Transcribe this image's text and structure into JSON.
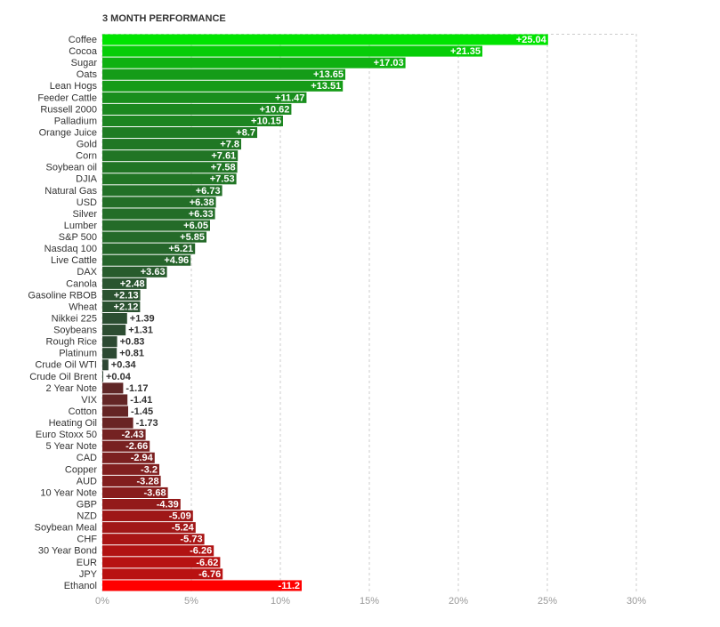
{
  "chart_data": {
    "type": "bar",
    "title": "3 MONTH PERFORMANCE",
    "categories": [
      "Coffee",
      "Cocoa",
      "Sugar",
      "Oats",
      "Lean Hogs",
      "Feeder Cattle",
      "Russell 2000",
      "Palladium",
      "Orange Juice",
      "Gold",
      "Corn",
      "Soybean oil",
      "DJIA",
      "Natural Gas",
      "USD",
      "Silver",
      "Lumber",
      "S&P 500",
      "Nasdaq 100",
      "Live Cattle",
      "DAX",
      "Canola",
      "Gasoline RBOB",
      "Wheat",
      "Nikkei 225",
      "Soybeans",
      "Rough Rice",
      "Platinum",
      "Crude Oil WTI",
      "Crude Oil Brent",
      "2 Year Note",
      "VIX",
      "Cotton",
      "Heating Oil",
      "Euro Stoxx 50",
      "5 Year Note",
      "CAD",
      "Copper",
      "AUD",
      "10 Year Note",
      "GBP",
      "NZD",
      "Soybean Meal",
      "CHF",
      "30 Year Bond",
      "EUR",
      "JPY",
      "Ethanol"
    ],
    "values": [
      25.04,
      21.35,
      17.03,
      13.65,
      13.51,
      11.47,
      10.62,
      10.15,
      8.7,
      7.8,
      7.61,
      7.58,
      7.53,
      6.73,
      6.38,
      6.33,
      6.05,
      5.85,
      5.21,
      4.96,
      3.63,
      2.48,
      2.13,
      2.12,
      1.39,
      1.31,
      0.83,
      0.81,
      0.34,
      0.04,
      -1.17,
      -1.41,
      -1.45,
      -1.73,
      -2.43,
      -2.66,
      -2.94,
      -3.2,
      -3.28,
      -3.68,
      -4.39,
      -5.09,
      -5.24,
      -5.73,
      -6.26,
      -6.62,
      -6.76,
      -11.2
    ],
    "value_labels": [
      "+25.04",
      "+21.35",
      "+17.03",
      "+13.65",
      "+13.51",
      "+11.47",
      "+10.62",
      "+10.15",
      "+8.7",
      "+7.8",
      "+7.61",
      "+7.58",
      "+7.53",
      "+6.73",
      "+6.38",
      "+6.33",
      "+6.05",
      "+5.85",
      "+5.21",
      "+4.96",
      "+3.63",
      "+2.48",
      "+2.13",
      "+2.12",
      "+1.39",
      "+1.31",
      "+0.83",
      "+0.81",
      "+0.34",
      "+0.04",
      "-1.17",
      "-1.41",
      "-1.45",
      "-1.73",
      "-2.43",
      "-2.66",
      "-2.94",
      "-3.2",
      "-3.28",
      "-3.68",
      "-4.39",
      "-5.09",
      "-5.24",
      "-5.73",
      "-6.26",
      "-6.62",
      "-6.76",
      "-11.2"
    ],
    "color_scale": {
      "positive": [
        "#2f4535",
        "#00e400"
      ],
      "negative": [
        "#4e2b2b",
        "#ff0000"
      ]
    },
    "xlim": [
      0,
      30
    ],
    "xticks": [
      {
        "value": 0,
        "label": "0%"
      },
      {
        "value": 5,
        "label": "5%"
      },
      {
        "value": 10,
        "label": "10%"
      },
      {
        "value": 15,
        "label": "15%"
      },
      {
        "value": 20,
        "label": "20%"
      },
      {
        "value": 25,
        "label": "25%"
      },
      {
        "value": 30,
        "label": "30%"
      }
    ],
    "grid": true
  }
}
